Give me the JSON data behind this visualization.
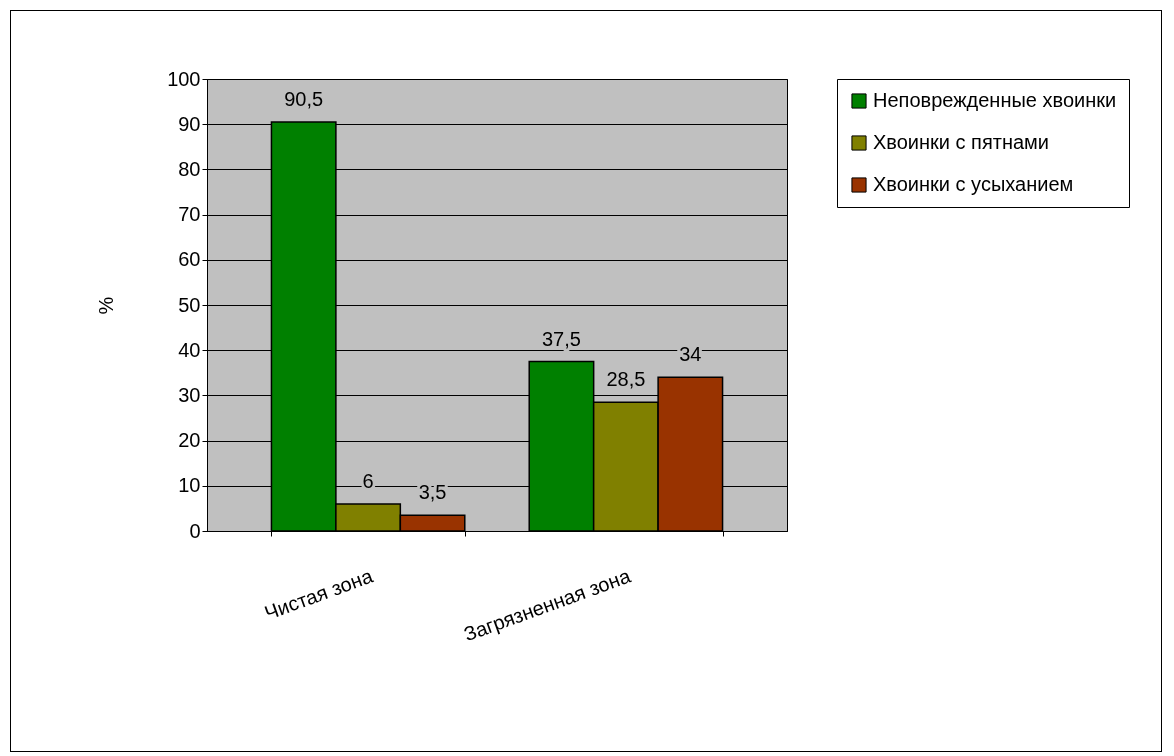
{
  "chart_data": {
    "type": "bar",
    "ylabel": "%",
    "categories": [
      "Чистая зона",
      "Загрязненная зона"
    ],
    "series": [
      {
        "name": "Неповрежденные хвоинки",
        "color": "#008000",
        "values": [
          90.5,
          37.5
        ],
        "value_labels": [
          "90,5",
          "37,5"
        ]
      },
      {
        "name": "Хвоинки с пятнами",
        "color": "#808000",
        "values": [
          6,
          28.5
        ],
        "value_labels": [
          "6",
          "28,5"
        ]
      },
      {
        "name": "Хвоинки с усыханием",
        "color": "#993300",
        "values": [
          3.5,
          34
        ],
        "value_labels": [
          "3,5",
          "34"
        ]
      }
    ],
    "ylim": [
      0,
      100
    ],
    "yticks": [
      0,
      10,
      20,
      30,
      40,
      50,
      60,
      70,
      80,
      90,
      100
    ],
    "grid": "y",
    "legend": "right"
  }
}
